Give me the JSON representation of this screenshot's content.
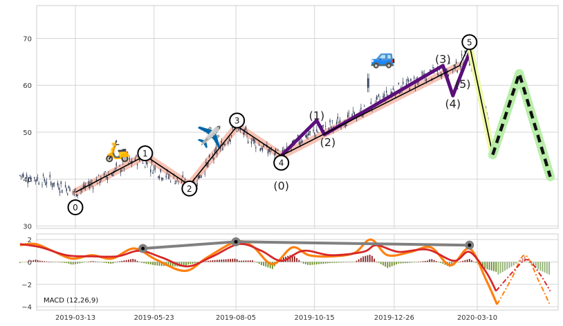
{
  "chart_data": [
    {
      "type": "candlestick",
      "ylim": [
        29.5,
        77
      ],
      "yticks": [
        "30",
        "40",
        "50",
        "60",
        "70"
      ],
      "grid": true,
      "price_path": [
        {
          "d": "2019-01-22",
          "y": 40.8
        },
        {
          "d": "2019-02-10",
          "y": 40.0
        },
        {
          "d": "2019-03-01",
          "y": 38.5
        },
        {
          "d": "2019-03-13",
          "y": 37.2
        },
        {
          "d": "2019-04-20",
          "y": 42.0
        },
        {
          "d": "2019-05-10",
          "y": 44.5
        },
        {
          "d": "2019-06-01",
          "y": 41.0
        },
        {
          "d": "2019-06-26",
          "y": 38.5
        },
        {
          "d": "2019-07-20",
          "y": 46.0
        },
        {
          "d": "2019-08-05",
          "y": 51.0
        },
        {
          "d": "2019-08-30",
          "y": 46.5
        },
        {
          "d": "2019-09-15",
          "y": 45.0
        },
        {
          "d": "2019-10-05",
          "y": 49.0
        },
        {
          "d": "2019-10-22",
          "y": 50.5
        },
        {
          "d": "2019-11-25",
          "y": 54.0
        },
        {
          "d": "2019-12-26",
          "y": 59.0
        },
        {
          "d": "2020-01-30",
          "y": 62.5
        },
        {
          "d": "2020-02-20",
          "y": 64.0
        },
        {
          "d": "2020-03-02",
          "y": 66.5
        },
        {
          "d": "2020-03-10",
          "y": 60.0
        },
        {
          "d": "2020-03-20",
          "y": 52.0
        }
      ],
      "spike": {
        "d": "2019-12-02",
        "y": 62.5
      },
      "waves": [
        {
          "name": "primary",
          "points": [
            {
              "d": "2019-03-13",
              "y": 37.2
            },
            {
              "d": "2019-05-15",
              "y": 45.0
            },
            {
              "d": "2019-06-24",
              "y": 38.7
            },
            {
              "d": "2019-08-06",
              "y": 51.3
            },
            {
              "d": "2019-09-15",
              "y": 45.0
            },
            {
              "d": "2020-02-23",
              "y": 64.2
            },
            {
              "d": "2020-03-03",
              "y": 68.6
            },
            {
              "d": "2020-03-24",
              "y": 45.2
            }
          ]
        },
        {
          "name": "sub",
          "points": [
            {
              "d": "2019-09-15",
              "y": 45.0
            },
            {
              "d": "2019-10-17",
              "y": 52.5
            },
            {
              "d": "2019-10-24",
              "y": 49.5
            },
            {
              "d": "2020-02-08",
              "y": 64.2
            },
            {
              "d": "2020-02-17",
              "y": 57.8
            },
            {
              "d": "2020-03-03",
              "y": 67.0
            }
          ]
        },
        {
          "name": "projection",
          "points": [
            {
              "d": "2020-03-24",
              "y": 45.2
            },
            {
              "d": "2020-04-17",
              "y": 62.5
            },
            {
              "d": "2020-05-15",
              "y": 40.5
            }
          ]
        }
      ],
      "wave_markers": [
        {
          "label": "0",
          "d": "2019-03-13",
          "y": 34.0
        },
        {
          "label": "1",
          "d": "2019-05-15",
          "y": 45.5
        },
        {
          "label": "2",
          "d": "2019-06-24",
          "y": 38.0
        },
        {
          "label": "3",
          "d": "2019-08-06",
          "y": 52.5
        },
        {
          "label": "4",
          "d": "2019-09-15",
          "y": 43.5
        },
        {
          "label": "5",
          "d": "2020-03-03",
          "y": 69.2
        }
      ],
      "wave_labels": [
        {
          "label": "(0)",
          "d": "2019-09-15",
          "y": 38.5
        },
        {
          "label": "(1)",
          "d": "2019-10-17",
          "y": 53.5
        },
        {
          "label": "(2)",
          "d": "2019-10-27",
          "y": 47.8
        },
        {
          "label": "(3)",
          "d": "2020-02-08",
          "y": 65.5
        },
        {
          "label": "(4)",
          "d": "2020-02-17",
          "y": 56.0
        },
        {
          "label": "(5)",
          "d": "2020-02-26",
          "y": 60.2
        }
      ],
      "icons": [
        {
          "icon": "scooter-icon",
          "glyph": "🛵",
          "d": "2019-04-20",
          "y": 46.0
        },
        {
          "icon": "airplane-icon",
          "glyph": "✈️",
          "d": "2019-07-12",
          "y": 49.0
        },
        {
          "icon": "car-icon",
          "glyph": "🚙",
          "d": "2019-12-16",
          "y": 66.0
        }
      ],
      "colors": {
        "candle": "#2e3b55",
        "trend_channel": "#f4b7a7",
        "primary_wave": "#000000",
        "sub_wave": "#5a0f7a",
        "projection_glow": "#b9eeaa",
        "projection": "#111111",
        "final_leg_glow": "#eef9a6"
      }
    },
    {
      "type": "bar",
      "ylim": [
        -4.3,
        2.5
      ],
      "yticks": [
        "2",
        "0",
        "−2",
        "−4"
      ],
      "xticks": [
        "2019-03-13",
        "2019-05-23",
        "2019-08-05",
        "2019-10-15",
        "2019-12-26",
        "2020-03-10"
      ],
      "annotation": "MACD (12,26,9)",
      "series": [
        {
          "role": "macd",
          "points": [
            {
              "d": "2019-01-22",
              "y": 1.5
            },
            {
              "d": "2019-02-05",
              "y": 1.6
            },
            {
              "d": "2019-02-20",
              "y": 1.0
            },
            {
              "d": "2019-03-10",
              "y": 0.3
            },
            {
              "d": "2019-03-28",
              "y": 0.6
            },
            {
              "d": "2019-04-15",
              "y": 0.3
            },
            {
              "d": "2019-05-05",
              "y": 1.2
            },
            {
              "d": "2019-05-25",
              "y": 0.2
            },
            {
              "d": "2019-06-20",
              "y": -0.8
            },
            {
              "d": "2019-07-10",
              "y": 0.4
            },
            {
              "d": "2019-08-05",
              "y": 1.8
            },
            {
              "d": "2019-08-20",
              "y": 1.4
            },
            {
              "d": "2019-09-07",
              "y": -0.2
            },
            {
              "d": "2019-09-25",
              "y": 1.3
            },
            {
              "d": "2019-10-10",
              "y": 0.6
            },
            {
              "d": "2019-10-30",
              "y": 0.5
            },
            {
              "d": "2019-11-20",
              "y": 0.8
            },
            {
              "d": "2019-12-05",
              "y": 2.0
            },
            {
              "d": "2019-12-20",
              "y": 0.6
            },
            {
              "d": "2020-01-10",
              "y": 0.9
            },
            {
              "d": "2020-01-28",
              "y": 1.3
            },
            {
              "d": "2020-02-15",
              "y": -0.3
            },
            {
              "d": "2020-03-03",
              "y": 1.2
            },
            {
              "d": "2020-03-18",
              "y": -1.6
            },
            {
              "d": "2020-03-28",
              "y": -3.8
            }
          ]
        },
        {
          "role": "signal",
          "points": [
            {
              "d": "2019-01-22",
              "y": 1.6
            },
            {
              "d": "2019-02-10",
              "y": 1.3
            },
            {
              "d": "2019-03-05",
              "y": 0.6
            },
            {
              "d": "2019-03-28",
              "y": 0.5
            },
            {
              "d": "2019-04-20",
              "y": 0.5
            },
            {
              "d": "2019-05-10",
              "y": 1.0
            },
            {
              "d": "2019-05-30",
              "y": 0.4
            },
            {
              "d": "2019-06-22",
              "y": -0.4
            },
            {
              "d": "2019-07-15",
              "y": 0.5
            },
            {
              "d": "2019-08-08",
              "y": 1.6
            },
            {
              "d": "2019-08-28",
              "y": 1.0
            },
            {
              "d": "2019-09-15",
              "y": 0.1
            },
            {
              "d": "2019-10-05",
              "y": 1.0
            },
            {
              "d": "2019-10-30",
              "y": 0.6
            },
            {
              "d": "2019-11-28",
              "y": 0.9
            },
            {
              "d": "2019-12-10",
              "y": 1.5
            },
            {
              "d": "2019-12-30",
              "y": 0.9
            },
            {
              "d": "2020-01-25",
              "y": 1.1
            },
            {
              "d": "2020-02-18",
              "y": 0.1
            },
            {
              "d": "2020-03-03",
              "y": 0.9
            },
            {
              "d": "2020-03-18",
              "y": -0.9
            },
            {
              "d": "2020-03-27",
              "y": -2.6
            }
          ]
        },
        {
          "role": "macd-projection",
          "points": [
            {
              "d": "2020-03-28",
              "y": -3.8
            },
            {
              "d": "2020-04-10",
              "y": -1.5
            },
            {
              "d": "2020-04-22",
              "y": 0.6
            },
            {
              "d": "2020-05-05",
              "y": -1.8
            },
            {
              "d": "2020-05-15",
              "y": -3.9
            }
          ]
        },
        {
          "role": "signal-projection",
          "points": [
            {
              "d": "2020-03-27",
              "y": -2.6
            },
            {
              "d": "2020-04-12",
              "y": -0.8
            },
            {
              "d": "2020-04-24",
              "y": 0.2
            },
            {
              "d": "2020-05-05",
              "y": -1.0
            },
            {
              "d": "2020-05-15",
              "y": -2.6
            }
          ]
        }
      ],
      "peak_divergence": [
        {
          "d": "2019-05-13",
          "y": 1.2
        },
        {
          "d": "2019-08-05",
          "y": 1.8
        },
        {
          "d": "2020-03-03",
          "y": 1.5
        }
      ],
      "colors": {
        "macd": "#ff7f0e",
        "signal": "#d62728",
        "hist_pos": "#8b1a1a",
        "hist_neg": "#6b8e23",
        "hist_proj_pos": "#d08a8a",
        "hist_proj_neg": "#8fb070",
        "divergence": "#808080"
      }
    }
  ]
}
